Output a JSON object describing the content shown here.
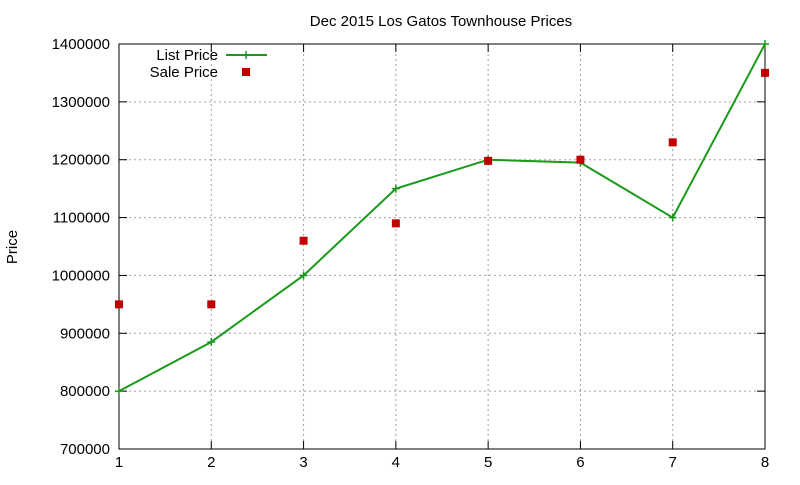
{
  "chart_data": {
    "type": "line",
    "title": "Dec 2015 Los Gatos Townhouse Prices",
    "xlabel": "",
    "ylabel": "Price",
    "xlim": [
      1,
      8
    ],
    "ylim": [
      700000,
      1400000
    ],
    "x_ticks": [
      "1",
      "2",
      "3",
      "4",
      "5",
      "6",
      "7",
      "8"
    ],
    "y_ticks": [
      "700000",
      "800000",
      "900000",
      "1000000",
      "1100000",
      "1200000",
      "1300000",
      "1400000"
    ],
    "grid": true,
    "legend_position": "top-left",
    "series": [
      {
        "name": "List Price",
        "style": "linespoints",
        "marker": "plus",
        "color": "#1a9a1a",
        "x": [
          1,
          2,
          3,
          4,
          5,
          6,
          7,
          8
        ],
        "values": [
          800000,
          885000,
          1000000,
          1150000,
          1200000,
          1195000,
          1100000,
          1400000
        ]
      },
      {
        "name": "Sale Price",
        "style": "points",
        "marker": "square",
        "color": "#c00000",
        "x": [
          1,
          2,
          3,
          4,
          5,
          6,
          7,
          8
        ],
        "values": [
          950000,
          950000,
          1060000,
          1090000,
          1198000,
          1200000,
          1230000,
          1350000
        ]
      }
    ]
  }
}
